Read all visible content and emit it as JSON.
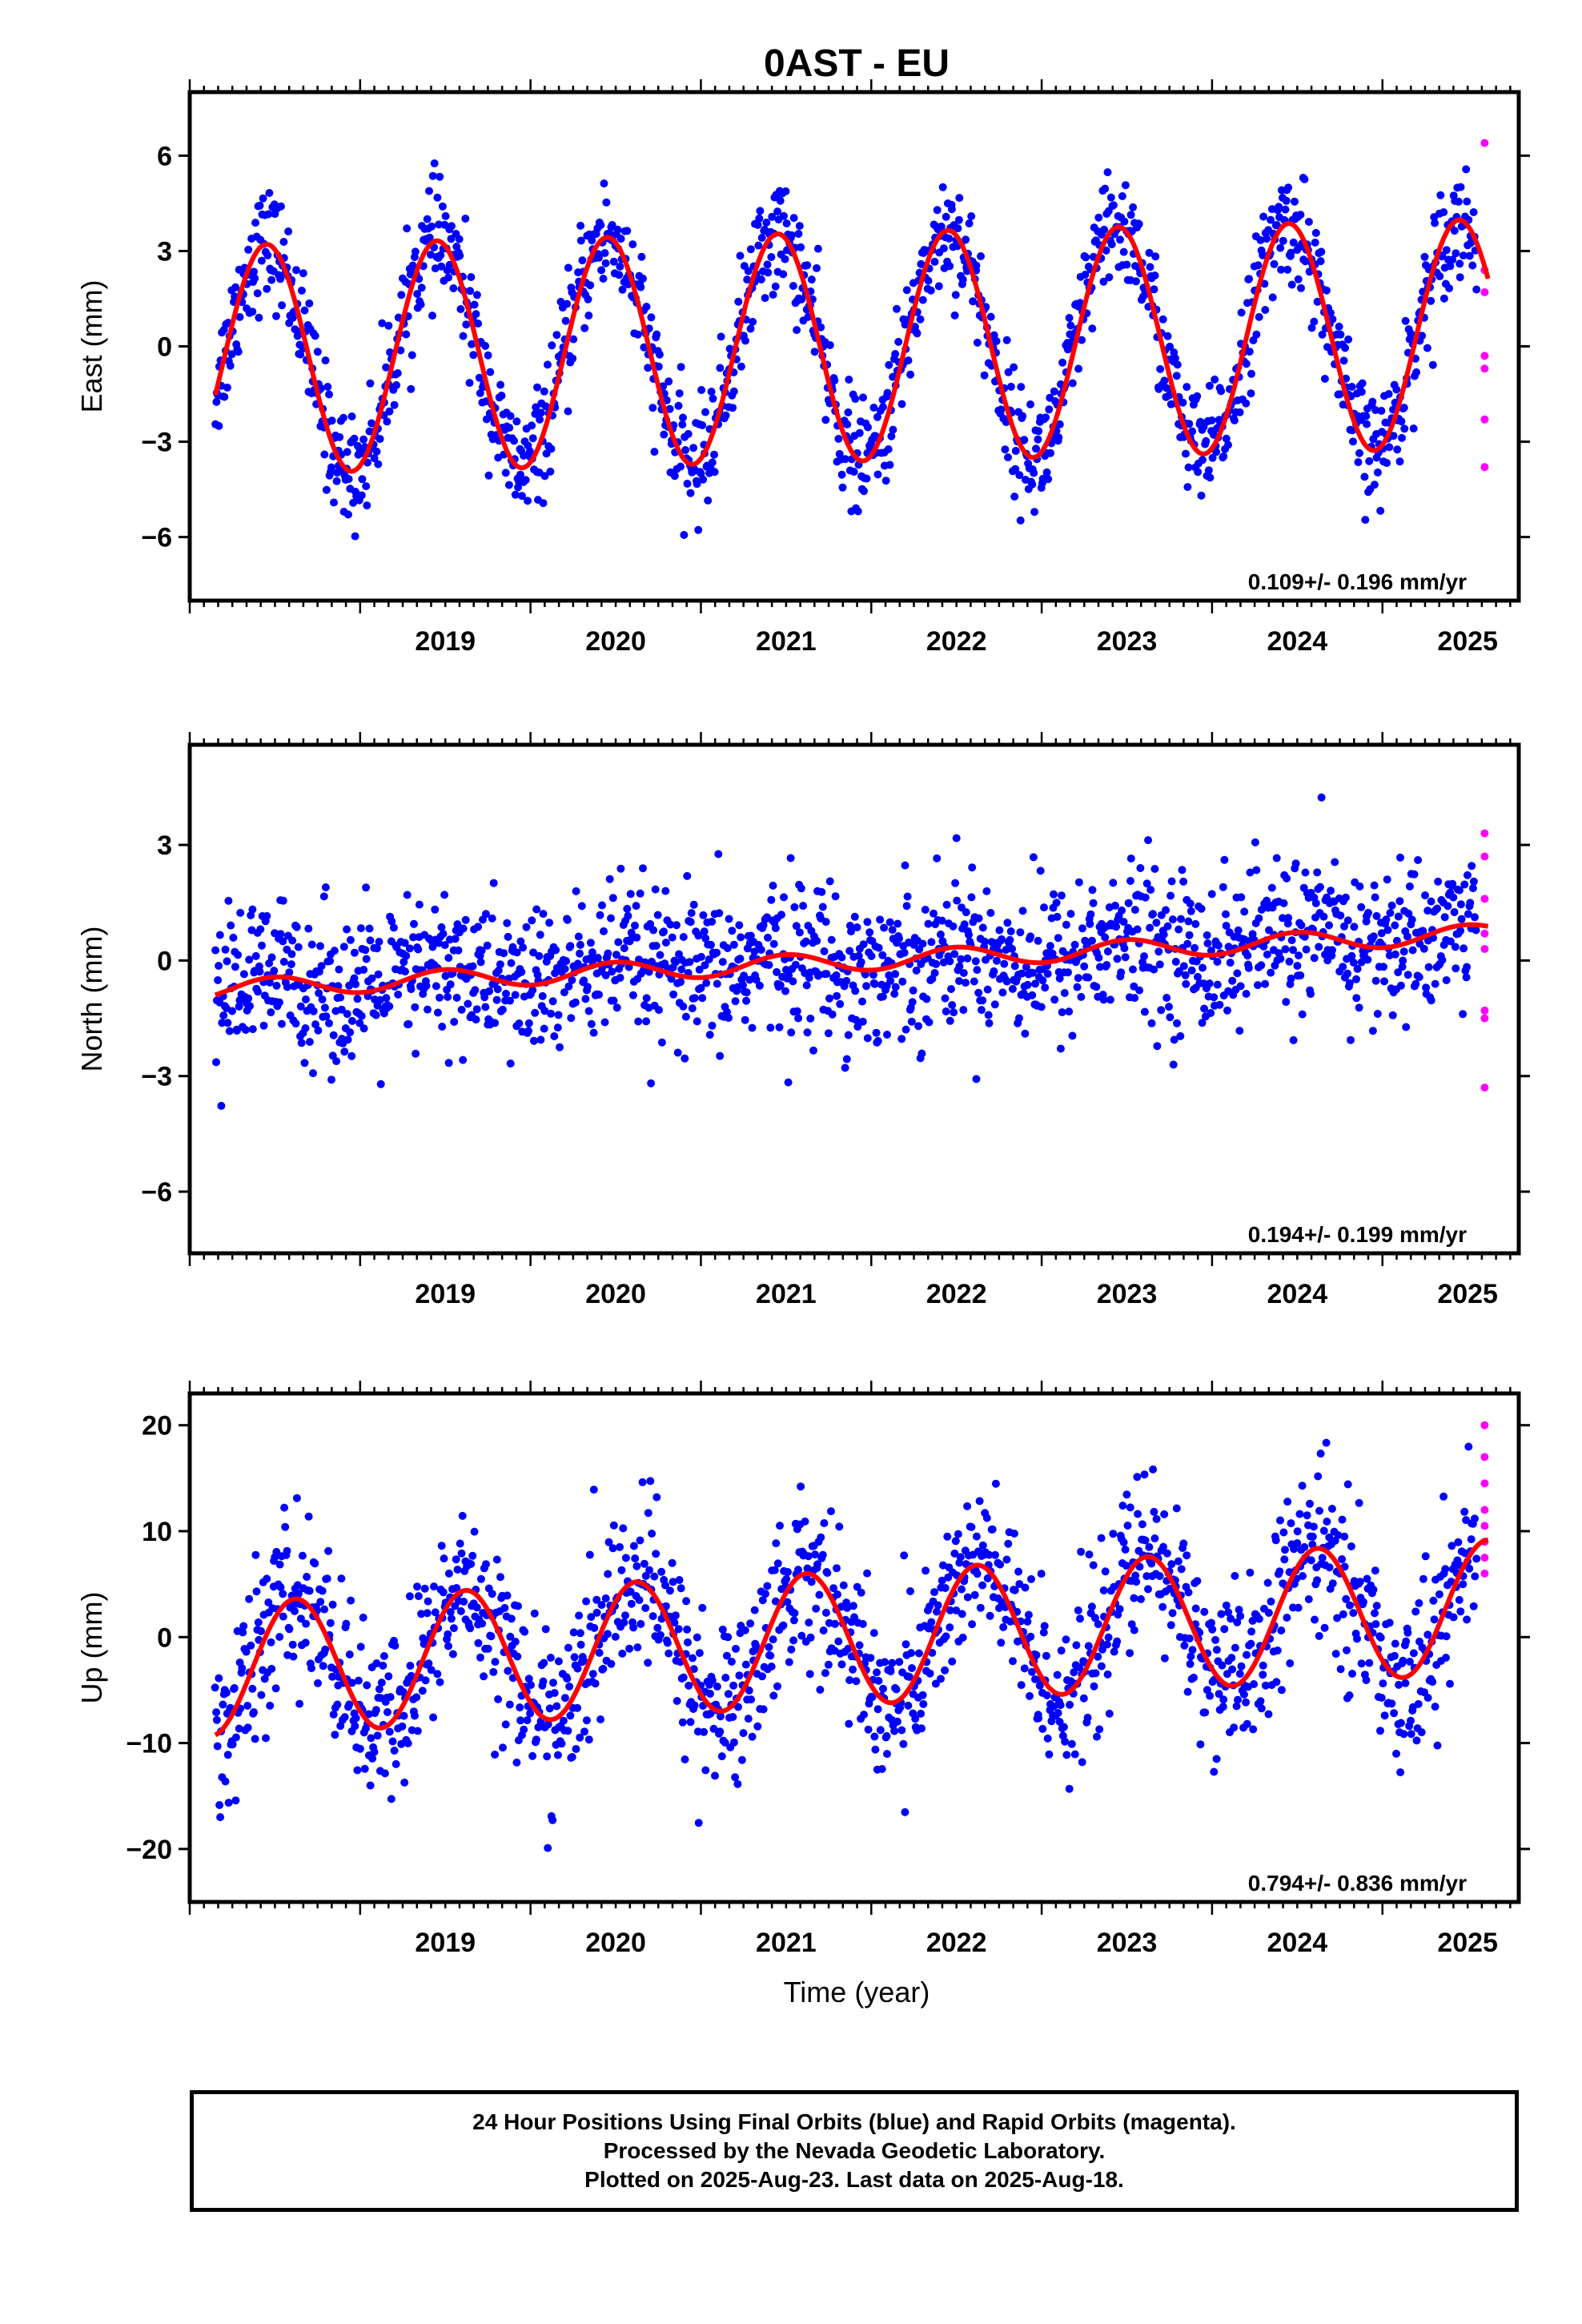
{
  "title": "0AST - EU",
  "xlabel": "Time (year)",
  "footer": {
    "line1": "24 Hour Positions Using Final Orbits (blue) and Rapid Orbits (magenta).",
    "line2": "Processed by the Nevada Geodetic Laboratory.",
    "line3": "Plotted on 2025-Aug-23. Last data on 2025-Aug-18."
  },
  "colors": {
    "final": "#0000ff",
    "rapid": "#ff00ff",
    "model": "#ff0000",
    "axis": "#000000"
  },
  "chart_data": [
    {
      "type": "scatter",
      "ylabel": "East (mm)",
      "rate_text": "0.109+/- 0.196 mm/yr",
      "xlim": [
        2018.0,
        2025.8
      ],
      "ylim": [
        -8,
        8
      ],
      "yticks": [
        -6,
        -3,
        0,
        3,
        6
      ],
      "ytick_labels": [
        "−6",
        "−3",
        "0",
        "3",
        "6"
      ],
      "xticks": [
        2019,
        2020,
        2021,
        2022,
        2023,
        2024,
        2025
      ],
      "xtick_labels": [
        "2019",
        "2020",
        "2021",
        "2022",
        "2023",
        "2024",
        "2025"
      ],
      "model": {
        "offset": 0.0,
        "rate": 0.109,
        "amplitude": 3.6,
        "peak_phase": 0.45,
        "ref_epoch": 2022.0
      },
      "scatter_sd": 0.9,
      "final_range": [
        2018.15,
        2025.55
      ],
      "rapid": {
        "x": [
          2025.6,
          2025.6,
          2025.6,
          2025.6,
          2025.6,
          2025.6,
          2025.6
        ],
        "y": [
          6.4,
          2.4,
          1.7,
          -0.3,
          -0.7,
          -2.3,
          -3.8
        ]
      }
    },
    {
      "type": "scatter",
      "ylabel": "North (mm)",
      "rate_text": "0.194+/- 0.199 mm/yr",
      "xlim": [
        2018.0,
        2025.8
      ],
      "ylim": [
        -7.6,
        5.6
      ],
      "yticks": [
        -6,
        -3,
        0,
        3
      ],
      "ytick_labels": [
        "−6",
        "−3",
        "0",
        "3"
      ],
      "xticks": [
        2019,
        2020,
        2021,
        2022,
        2023,
        2024,
        2025
      ],
      "xtick_labels": [
        "2019",
        "2020",
        "2021",
        "2022",
        "2023",
        "2024",
        "2025"
      ],
      "model": {
        "offset": 0.0,
        "rate": 0.194,
        "amplitude": 0.25,
        "peak_phase": 0.5,
        "ref_epoch": 2022.0
      },
      "scatter_sd": 1.0,
      "final_range": [
        2018.15,
        2025.55
      ],
      "rapid": {
        "x": [
          2025.6,
          2025.6,
          2025.6,
          2025.6,
          2025.6,
          2025.6,
          2025.6,
          2025.6
        ],
        "y": [
          3.3,
          2.7,
          1.6,
          0.7,
          0.3,
          -1.3,
          -1.5,
          -3.3
        ]
      }
    },
    {
      "type": "scatter",
      "ylabel": "Up (mm)",
      "rate_text": "0.794+/- 0.836 mm/yr",
      "xlim": [
        2018.0,
        2025.8
      ],
      "ylim": [
        -25,
        23
      ],
      "yticks": [
        -20,
        -10,
        0,
        10,
        20
      ],
      "ytick_labels": [
        "−20",
        "−10",
        "0",
        "10",
        "20"
      ],
      "xticks": [
        2019,
        2020,
        2021,
        2022,
        2023,
        2024,
        2025
      ],
      "xtick_labels": [
        "2019",
        "2020",
        "2021",
        "2022",
        "2023",
        "2024",
        "2025"
      ],
      "model": {
        "offset": 0.0,
        "rate": 0.794,
        "amplitude": 6.3,
        "peak_phase": 0.62,
        "ref_epoch": 2022.0
      },
      "scatter_sd": 4.0,
      "final_range": [
        2018.15,
        2025.55
      ],
      "rapid": {
        "x": [
          2025.6,
          2025.6,
          2025.6,
          2025.6,
          2025.6,
          2025.6,
          2025.6,
          2025.6
        ],
        "y": [
          20.0,
          17.0,
          14.5,
          12.0,
          10.5,
          9.0,
          7.5,
          6.0
        ]
      }
    }
  ]
}
